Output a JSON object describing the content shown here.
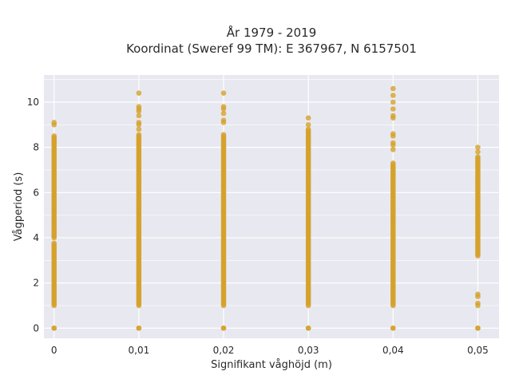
{
  "chart_data": {
    "type": "scatter",
    "title_line1": "År 1979 - 2019",
    "title_line2": "Koordinat (Sweref 99 TM): E 367967, N 6157501",
    "xlabel": "Signifikant våghöjd (m)",
    "ylabel": "Vågperiod (s)",
    "x_ticks": [
      "0",
      "0,01",
      "0,02",
      "0,03",
      "0,04",
      "0,05"
    ],
    "x_tick_values": [
      0,
      0.01,
      0.02,
      0.03,
      0.04,
      0.05
    ],
    "y_ticks": [
      "0",
      "2",
      "4",
      "6",
      "8",
      "10"
    ],
    "y_tick_values": [
      0,
      2,
      4,
      6,
      8,
      10
    ],
    "xlim": [
      -0.0012,
      0.0525
    ],
    "ylim": [
      -0.45,
      11.2
    ],
    "grid": true,
    "marker_color": "#D4A12A",
    "background": "#E8E8F0",
    "series": [
      {
        "x": 0,
        "ranges": [
          [
            1.0,
            3.8
          ],
          [
            4.0,
            8.5
          ]
        ],
        "extra_y": [
          0,
          0,
          8.2,
          8.4,
          9.0,
          9.1
        ]
      },
      {
        "x": 0.01,
        "ranges": [
          [
            1.0,
            8.6
          ]
        ],
        "extra_y": [
          0,
          0,
          8.8,
          9.0,
          9.1,
          9.4,
          9.6,
          9.7,
          9.8,
          10.4
        ]
      },
      {
        "x": 0.02,
        "ranges": [
          [
            1.0,
            8.6
          ]
        ],
        "extra_y": [
          0,
          0,
          9.1,
          9.2,
          9.5,
          9.7,
          9.8,
          10.4
        ]
      },
      {
        "x": 0.03,
        "ranges": [
          [
            1.0,
            8.8
          ]
        ],
        "extra_y": [
          0,
          0,
          9.0,
          9.3
        ]
      },
      {
        "x": 0.04,
        "ranges": [
          [
            1.0,
            7.3
          ]
        ],
        "extra_y": [
          0,
          0,
          7.9,
          8.1,
          8.2,
          8.5,
          8.6,
          9.3,
          9.4,
          9.7,
          10.0,
          10.3,
          10.6
        ]
      },
      {
        "x": 0.05,
        "ranges": [
          [
            3.2,
            7.6
          ]
        ],
        "extra_y": [
          0,
          0,
          1.0,
          1.1,
          1.4,
          1.5,
          7.8,
          8.0
        ]
      }
    ]
  }
}
